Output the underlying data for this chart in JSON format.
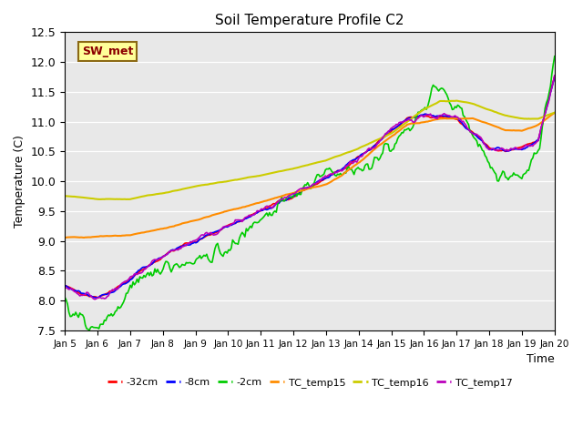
{
  "title": "Soil Temperature Profile C2",
  "xlabel": "Time",
  "ylabel": "Temperature (C)",
  "ylim": [
    7.5,
    12.5
  ],
  "yticks": [
    7.5,
    8.0,
    8.5,
    9.0,
    9.5,
    10.0,
    10.5,
    11.0,
    11.5,
    12.0,
    12.5
  ],
  "annotation_text": "SW_met",
  "annotation_color": "#8B0000",
  "annotation_bg": "#FFFF99",
  "annotation_border": "#8B6914",
  "background_color": "#E8E8E8",
  "xtick_labels": [
    "Jan 5",
    "Jan 6",
    "Jan 7",
    "Jan 8",
    "Jan 9",
    "Jan 10",
    "Jan 11",
    "Jan 12",
    "Jan 13",
    "Jan 14",
    "Jan 15",
    "Jan 16",
    "Jan 17",
    "Jan 18",
    "Jan 19",
    "Jan 20"
  ],
  "legend_items": [
    {
      "label": "-32cm",
      "color": "#FF0000"
    },
    {
      "label": "-8cm",
      "color": "#0000FF"
    },
    {
      "label": "-2cm",
      "color": "#00CC00"
    },
    {
      "label": "TC_temp15",
      "color": "#FF8C00"
    },
    {
      "label": "TC_temp16",
      "color": "#CCCC00"
    },
    {
      "label": "TC_temp17",
      "color": "#BB00BB"
    }
  ],
  "series": [
    {
      "label": "-32cm",
      "color": "#FF0000",
      "lw": 1.2
    },
    {
      "label": "-8cm",
      "color": "#0000FF",
      "lw": 1.2
    },
    {
      "label": "-2cm",
      "color": "#00CC00",
      "lw": 1.2
    },
    {
      "label": "TC_temp15",
      "color": "#FF8C00",
      "lw": 1.5
    },
    {
      "label": "TC_temp16",
      "color": "#CCCC00",
      "lw": 1.5
    },
    {
      "label": "TC_temp17",
      "color": "#BB00BB",
      "lw": 1.2
    }
  ]
}
